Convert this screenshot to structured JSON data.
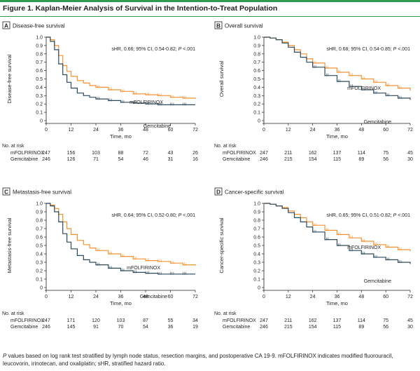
{
  "figure": {
    "title": "Figure 1. Kaplan-Meier Analysis of Survival in the Intention-to-Treat Population",
    "footnote_p": "P",
    "footnote_rest": " values based on log rank test stratified by lymph node status, resection margins, and postoperative CA 19-9. mFOLFIRINOX indicates modified fluorouracil, leucovorin, irinotecan, and oxaliplatin; sHR, stratified hazard ratio."
  },
  "colors": {
    "mfolfirinox": "#f39233",
    "gemcitabine": "#2c4a5e",
    "accent": "#2e9b4e"
  },
  "chart_data": [
    {
      "type": "line",
      "letter": "A",
      "title": "Disease-free survival",
      "ylabel": "Disease-free survival",
      "xlabel": "Time, mo",
      "stat_prefix": "sHR, 0.66; 95% CI, 0.54-0.82; ",
      "stat_p": "P",
      "stat_suffix": "<.001",
      "xlim": [
        0,
        72
      ],
      "ylim": [
        0,
        1.0
      ],
      "x_ticks": [
        0,
        12,
        24,
        36,
        48,
        60,
        72
      ],
      "y_ticks": [
        "0",
        "0.1",
        "0.2",
        "0.3",
        "0.4",
        "0.5",
        "0.6",
        "0.7",
        "0.8",
        "0.9",
        "1.0"
      ],
      "series": [
        {
          "name": "mFOLFIRINOX",
          "x": [
            0,
            2,
            4,
            6,
            8,
            10,
            12,
            15,
            18,
            21,
            24,
            30,
            36,
            42,
            48,
            54,
            60,
            66,
            72
          ],
          "y": [
            1.0,
            0.97,
            0.9,
            0.78,
            0.66,
            0.59,
            0.53,
            0.48,
            0.45,
            0.42,
            0.4,
            0.37,
            0.35,
            0.32,
            0.31,
            0.3,
            0.28,
            0.27,
            0.26
          ]
        },
        {
          "name": "Gemcitabine",
          "x": [
            0,
            2,
            4,
            6,
            8,
            10,
            12,
            15,
            18,
            21,
            24,
            30,
            36,
            42,
            48,
            54,
            60,
            66,
            72
          ],
          "y": [
            1.0,
            0.95,
            0.85,
            0.68,
            0.55,
            0.46,
            0.39,
            0.33,
            0.3,
            0.28,
            0.26,
            0.24,
            0.22,
            0.21,
            0.2,
            0.19,
            0.19,
            0.19,
            0.19
          ]
        }
      ],
      "risk": {
        "header": "No. at risk",
        "rows": [
          {
            "name": "mFOLFIRINOX",
            "values": [
              "247",
              "156",
              "103",
              "88",
              "72",
              "43",
              "26"
            ]
          },
          {
            "name": "Gemcitabine",
            "values": [
              "246",
              "126",
              "71",
              "54",
              "46",
              "31",
              "16"
            ]
          }
        ]
      }
    },
    {
      "type": "line",
      "letter": "B",
      "title": "Overall survival",
      "ylabel": "Overall survival",
      "xlabel": "Time, mo",
      "stat_prefix": "sHR, 0.68; 95% CI, 0.54-0.85; ",
      "stat_p": "P",
      "stat_suffix": "<.001",
      "xlim": [
        0,
        72
      ],
      "ylim": [
        0,
        1.0
      ],
      "x_ticks": [
        0,
        12,
        24,
        36,
        48,
        60,
        72
      ],
      "y_ticks": [
        "0",
        "0.1",
        "0.2",
        "0.3",
        "0.4",
        "0.5",
        "0.6",
        "0.7",
        "0.8",
        "0.9",
        "1.0"
      ],
      "series": [
        {
          "name": "mFOLFIRINOX",
          "x": [
            0,
            3,
            6,
            9,
            12,
            15,
            18,
            21,
            24,
            30,
            36,
            42,
            48,
            54,
            60,
            66,
            72
          ],
          "y": [
            1.0,
            0.99,
            0.97,
            0.94,
            0.9,
            0.85,
            0.8,
            0.74,
            0.69,
            0.63,
            0.58,
            0.54,
            0.5,
            0.46,
            0.42,
            0.39,
            0.36
          ]
        },
        {
          "name": "Gemcitabine",
          "x": [
            0,
            3,
            6,
            9,
            12,
            15,
            18,
            21,
            24,
            30,
            36,
            42,
            48,
            54,
            60,
            66,
            72
          ],
          "y": [
            1.0,
            0.99,
            0.97,
            0.93,
            0.88,
            0.82,
            0.76,
            0.7,
            0.64,
            0.54,
            0.47,
            0.41,
            0.37,
            0.33,
            0.3,
            0.27,
            0.25
          ]
        }
      ],
      "risk": {
        "header": "No. at risk",
        "rows": [
          {
            "name": "mFOLFIRINOX",
            "values": [
              "247",
              "211",
              "162",
              "137",
              "114",
              "75",
              "45"
            ]
          },
          {
            "name": "Gemcitabine",
            "values": [
              "246",
              "215",
              "154",
              "115",
              "89",
              "56",
              "30"
            ]
          }
        ]
      }
    },
    {
      "type": "line",
      "letter": "C",
      "title": "Metastasis-free survival",
      "ylabel": "Metastasis-free survival",
      "xlabel": "Time, mo",
      "stat_prefix": "sHR, 0.64; 95% CI, 0.52-0.80; ",
      "stat_p": "P",
      "stat_suffix": "<.001",
      "xlim": [
        0,
        72
      ],
      "ylim": [
        0,
        1.0
      ],
      "x_ticks": [
        0,
        12,
        24,
        36,
        48,
        60,
        72
      ],
      "y_ticks": [
        "0",
        "0.1",
        "0.2",
        "0.3",
        "0.4",
        "0.5",
        "0.6",
        "0.7",
        "0.8",
        "0.9",
        "1.0"
      ],
      "series": [
        {
          "name": "mFOLFIRINOX",
          "x": [
            0,
            2,
            4,
            6,
            8,
            10,
            12,
            15,
            18,
            21,
            24,
            30,
            36,
            42,
            48,
            54,
            60,
            66,
            72
          ],
          "y": [
            1.0,
            0.98,
            0.94,
            0.87,
            0.78,
            0.7,
            0.63,
            0.56,
            0.51,
            0.47,
            0.44,
            0.4,
            0.37,
            0.34,
            0.32,
            0.31,
            0.29,
            0.27,
            0.26
          ]
        },
        {
          "name": "Gemcitabine",
          "x": [
            0,
            2,
            4,
            6,
            8,
            10,
            12,
            15,
            18,
            21,
            24,
            30,
            36,
            42,
            48,
            54,
            60,
            66,
            72
          ],
          "y": [
            1.0,
            0.97,
            0.9,
            0.78,
            0.64,
            0.54,
            0.46,
            0.38,
            0.33,
            0.3,
            0.27,
            0.23,
            0.2,
            0.18,
            0.17,
            0.16,
            0.16,
            0.16,
            0.16
          ]
        }
      ],
      "risk": {
        "header": "No. at risk",
        "rows": [
          {
            "name": "mFOLFIRINOX",
            "values": [
              "247",
              "171",
              "120",
              "103",
              "87",
              "55",
              "34"
            ]
          },
          {
            "name": "Gemcitabine",
            "values": [
              "246",
              "145",
              "91",
              "70",
              "54",
              "36",
              "19"
            ]
          }
        ]
      }
    },
    {
      "type": "line",
      "letter": "D",
      "title": "Cancer-specific survival",
      "ylabel": "Cancer-specific survival",
      "xlabel": "Time, mo",
      "stat_prefix": "sHR, 0.65; 95% CI, 0.51-0.82; ",
      "stat_p": "P",
      "stat_suffix": "<.001",
      "xlim": [
        0,
        72
      ],
      "ylim": [
        0,
        1.0
      ],
      "x_ticks": [
        0,
        12,
        24,
        36,
        48,
        60,
        72
      ],
      "y_ticks": [
        "0",
        "0.1",
        "0.2",
        "0.3",
        "0.4",
        "0.5",
        "0.6",
        "0.7",
        "0.8",
        "0.9",
        "1.0"
      ],
      "series": [
        {
          "name": "mFOLFIRINOX",
          "x": [
            0,
            3,
            6,
            9,
            12,
            15,
            18,
            21,
            24,
            30,
            36,
            42,
            48,
            54,
            60,
            66,
            72
          ],
          "y": [
            1.0,
            0.99,
            0.97,
            0.95,
            0.91,
            0.87,
            0.83,
            0.78,
            0.74,
            0.68,
            0.63,
            0.59,
            0.55,
            0.51,
            0.48,
            0.45,
            0.43
          ]
        },
        {
          "name": "Gemcitabine",
          "x": [
            0,
            3,
            6,
            9,
            12,
            15,
            18,
            21,
            24,
            30,
            36,
            42,
            48,
            54,
            60,
            66,
            72
          ],
          "y": [
            1.0,
            0.99,
            0.97,
            0.94,
            0.89,
            0.83,
            0.78,
            0.72,
            0.66,
            0.57,
            0.5,
            0.44,
            0.4,
            0.36,
            0.33,
            0.3,
            0.28
          ]
        }
      ],
      "risk": {
        "header": "No. at risk",
        "rows": [
          {
            "name": "mFOLFIRINOX",
            "values": [
              "247",
              "211",
              "162",
              "137",
              "114",
              "75",
              "45"
            ]
          },
          {
            "name": "Gemcitabine",
            "values": [
              "246",
              "215",
              "154",
              "115",
              "89",
              "56",
              "30"
            ]
          }
        ]
      }
    }
  ]
}
